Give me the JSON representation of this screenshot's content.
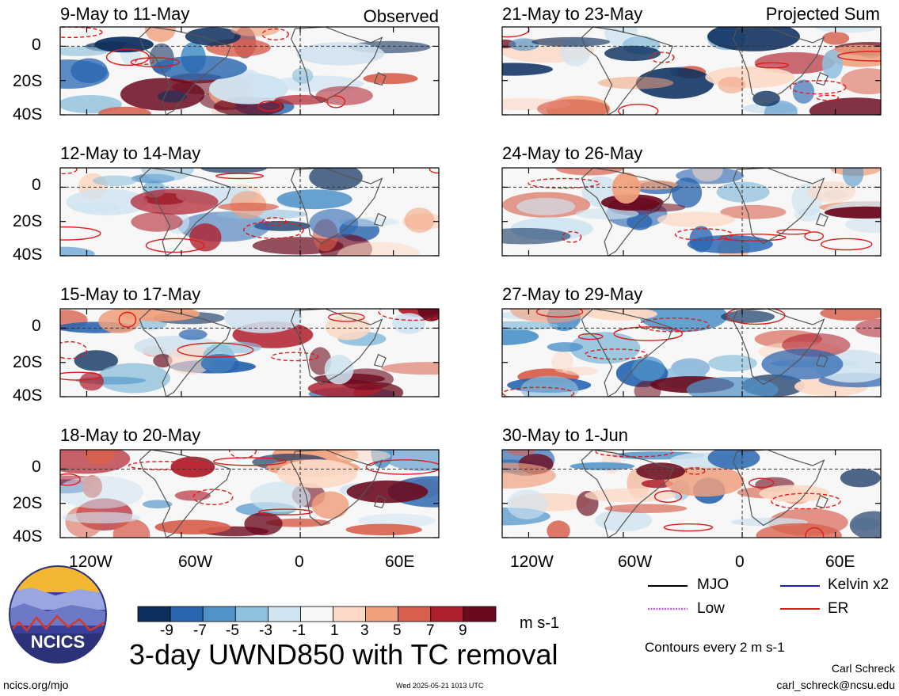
{
  "header": {
    "observed_label": "Observed",
    "projected_label": "Projected Sum"
  },
  "chart_data": {
    "type": "heatmap",
    "variable": "UWND850",
    "title": "3-day UWND850 with TC removal",
    "units": "m s-1",
    "contour_note": "Contours every 2 m s-1",
    "y_ticks": [
      "0",
      "20S",
      "40S"
    ],
    "x_ticks": [
      "120W",
      "60W",
      "0",
      "60E"
    ],
    "colorbar": {
      "ticks": [
        "-9",
        "-7",
        "-5",
        "-3",
        "-1",
        "1",
        "3",
        "5",
        "7",
        "9"
      ],
      "colors": [
        "#0c2f5e",
        "#2a66b0",
        "#4f93c9",
        "#8fc0dd",
        "#cfe3f0",
        "#f7f7f7",
        "#fcd9c6",
        "#f0a07c",
        "#d8604d",
        "#b01f2c",
        "#6b0a1e"
      ]
    },
    "legend": [
      {
        "name": "MJO",
        "color": "#000000",
        "style": "solid"
      },
      {
        "name": "Kelvin x2",
        "color": "#1f1fbf",
        "style": "solid"
      },
      {
        "name": "Low",
        "color": "#c060e0",
        "style": "dotted"
      },
      {
        "name": "ER",
        "color": "#e01a1a",
        "style": "solid"
      }
    ],
    "panels": [
      {
        "label": "9-May to 11-May",
        "group": "Observed"
      },
      {
        "label": "12-May to 14-May",
        "group": "Observed"
      },
      {
        "label": "15-May to 17-May",
        "group": "Observed"
      },
      {
        "label": "18-May to 20-May",
        "group": "Observed"
      },
      {
        "label": "21-May to 23-May",
        "group": "Projected Sum"
      },
      {
        "label": "24-May to 26-May",
        "group": "Projected Sum"
      },
      {
        "label": "27-May to 29-May",
        "group": "Projected Sum"
      },
      {
        "label": "30-May to 1-Jun",
        "group": "Projected Sum"
      }
    ]
  },
  "logo": {
    "text": "NCICS",
    "icon": "ncics-logo-icon"
  },
  "footer": {
    "url": "ncics.org/mjo",
    "timestamp": "Wed 2025-05-21 1013 UTC",
    "author": "Carl Schreck",
    "email": "carl_schreck@ncsu.edu"
  }
}
